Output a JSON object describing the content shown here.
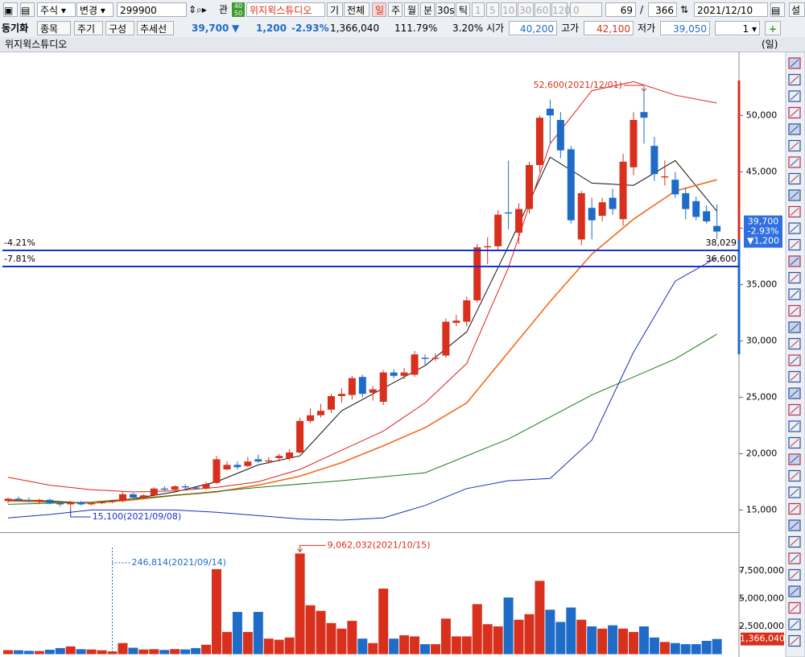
{
  "toolbar": {
    "market": "주식",
    "change": "변경",
    "code": "299900",
    "gwan": "관",
    "badge": [
      "40",
      "50"
    ],
    "name": "위지윅스튜디오",
    "gi": "기",
    "all": "전체",
    "periods": [
      "일",
      "주",
      "월",
      "분",
      "30s",
      "틱"
    ],
    "intervals": [
      "1",
      "5",
      "10",
      "30",
      "60",
      "120"
    ],
    "zero": "0",
    "count": "69",
    "slash": "/",
    "total": "366",
    "date": "2021/12/10",
    "settings": "설"
  },
  "infobar": {
    "buttons": [
      "동기화",
      "종목",
      "주기",
      "구성",
      "추세선"
    ],
    "price": "39,700",
    "arrow": "▼",
    "change": "1,200",
    "rate": "-2.93%",
    "volume": "1,366,040",
    "ratio": "111.79%",
    "turnover": "3.20%",
    "open_label": "시가",
    "open": "40,200",
    "high_label": "고가",
    "high": "42,100",
    "low_label": "저가",
    "low": "39,050",
    "spin": "1"
  },
  "panel": {
    "title": "위지윅스튜디오",
    "period": "(일)"
  },
  "chart_data": [
    {
      "type": "candlestick",
      "up_color": "#d8301c",
      "down_color": "#1f6cc8",
      "open": [
        15800,
        16000,
        15900,
        15800,
        15900,
        15600,
        15500,
        15700,
        15500,
        15600,
        15700,
        15800,
        16400,
        16100,
        16300,
        16900,
        16800,
        17100,
        17000,
        16900,
        17400,
        18600,
        19000,
        18900,
        19500,
        19300,
        19600,
        19600,
        20100,
        22900,
        23400,
        23900,
        25100,
        25200,
        26800,
        25400,
        24600,
        27200,
        26900,
        27000,
        28500,
        28400,
        28700,
        31600,
        31700,
        33600,
        38300,
        38400,
        41400,
        39600,
        41700,
        45600,
        50600,
        49600,
        47000,
        39000,
        41800,
        41100,
        42700,
        40800,
        45400,
        50300,
        47300,
        44500,
        44300,
        43100,
        42400,
        41500,
        40200
      ],
      "high": [
        16100,
        16200,
        16100,
        16000,
        16000,
        15800,
        15800,
        15800,
        15700,
        15800,
        15900,
        16600,
        16500,
        16400,
        17000,
        17100,
        17200,
        17300,
        17100,
        17500,
        19800,
        19300,
        19300,
        19700,
        19900,
        19700,
        20000,
        20400,
        23200,
        24000,
        24400,
        25300,
        25800,
        26900,
        27000,
        26000,
        27400,
        27500,
        27600,
        29100,
        28800,
        28900,
        32000,
        32300,
        33900,
        38600,
        39200,
        41600,
        46000,
        42200,
        45900,
        50000,
        51400,
        50300,
        47300,
        43300,
        42700,
        42700,
        43500,
        46600,
        50300,
        52600,
        48100,
        46000,
        45000,
        43600,
        42800,
        42000,
        42100
      ],
      "low": [
        15600,
        15800,
        15700,
        15600,
        15500,
        15300,
        15100,
        15400,
        15400,
        15500,
        15600,
        15700,
        16000,
        16000,
        16200,
        16700,
        16700,
        16900,
        16800,
        16800,
        17300,
        18500,
        18600,
        18800,
        19200,
        19100,
        19300,
        19400,
        20000,
        22700,
        23200,
        23600,
        24500,
        24800,
        25000,
        24700,
        24300,
        26700,
        26600,
        26800,
        27900,
        28200,
        28500,
        31300,
        31300,
        33400,
        36800,
        38000,
        39900,
        38600,
        41300,
        45000,
        47500,
        46200,
        40400,
        38500,
        39000,
        40600,
        41200,
        40200,
        44700,
        47500,
        44200,
        43800,
        42700,
        40800,
        40700,
        40400,
        39050
      ],
      "close": [
        16000,
        15900,
        15800,
        15900,
        15600,
        15500,
        15700,
        15500,
        15600,
        15700,
        15800,
        16400,
        16100,
        16300,
        16900,
        16800,
        17100,
        17000,
        16900,
        17300,
        19500,
        19000,
        18800,
        19300,
        19300,
        19400,
        19800,
        20100,
        22900,
        23400,
        23800,
        25100,
        25300,
        26700,
        25300,
        25700,
        27200,
        26900,
        27200,
        28800,
        28400,
        28500,
        31700,
        31800,
        33600,
        38300,
        38400,
        41200,
        41300,
        41700,
        45600,
        49800,
        50000,
        46900,
        40700,
        43100,
        40700,
        42300,
        41700,
        45900,
        49600,
        49800,
        44800,
        44600,
        43000,
        41700,
        41000,
        40600,
        39700
      ],
      "ylim": [
        13100,
        55600
      ],
      "yticks": [
        {
          "value": 15000,
          "label": "15,000"
        },
        {
          "value": 20000,
          "label": "20,000"
        },
        {
          "value": 25000,
          "label": "25,000"
        },
        {
          "value": 30000,
          "label": "30,000"
        },
        {
          "value": 35000,
          "label": "35,000"
        },
        {
          "value": 40000,
          "label": "40,000"
        },
        {
          "value": 45000,
          "label": "45,000"
        },
        {
          "value": 50000,
          "label": "50,000"
        }
      ],
      "lines": [
        {
          "color": "#111111",
          "x": [
            0,
            4,
            8,
            12,
            16,
            20,
            24,
            28,
            32,
            36,
            40,
            44,
            48,
            52,
            56,
            60,
            64,
            68
          ],
          "values": [
            15900,
            15800,
            15600,
            16000,
            16600,
            17500,
            19000,
            19800,
            23800,
            25800,
            27800,
            30800,
            38400,
            46300,
            44000,
            43800,
            46000,
            41500
          ]
        },
        {
          "color": "#f26a1b",
          "x": [
            0,
            4,
            8,
            12,
            16,
            20,
            24,
            28,
            32,
            36,
            40,
            44,
            48,
            52,
            56,
            60,
            64,
            68
          ],
          "values": [
            15800,
            15700,
            15600,
            15900,
            16300,
            16600,
            17200,
            18000,
            19200,
            20700,
            22300,
            24500,
            29000,
            33500,
            37700,
            40800,
            43300,
            44300
          ]
        },
        {
          "color": "#1a7a1a",
          "x": [
            0,
            8,
            16,
            24,
            32,
            40,
            48,
            56,
            64,
            68
          ],
          "values": [
            15500,
            15700,
            16300,
            17000,
            17600,
            18300,
            21300,
            25200,
            28400,
            30600
          ]
        },
        {
          "color": "#e0201a",
          "x": [
            0,
            4,
            8,
            12,
            16,
            20,
            24,
            28,
            32,
            36,
            40,
            44,
            48,
            52,
            56,
            60,
            64,
            68
          ],
          "values": [
            17900,
            17200,
            16800,
            16600,
            16700,
            17000,
            17500,
            18600,
            20300,
            22000,
            24500,
            28000,
            36500,
            47500,
            52200,
            53000,
            51800,
            51100
          ]
        },
        {
          "color": "#1a2fb8",
          "x": [
            0,
            4,
            8,
            12,
            16,
            20,
            24,
            28,
            32,
            36,
            40,
            44,
            48,
            52,
            56,
            60,
            64,
            68
          ],
          "values": [
            14300,
            14600,
            15000,
            15000,
            15000,
            14800,
            14500,
            14200,
            14100,
            14300,
            15400,
            16900,
            17600,
            17800,
            21200,
            29000,
            35300,
            37400
          ]
        }
      ],
      "hlines": [
        {
          "value": 38029,
          "label": "38,029",
          "pct": "-4.21%"
        },
        {
          "value": 36600,
          "label": "36,600",
          "pct": "-7.81%"
        }
      ],
      "high_label": "52,600(2021/12/01)",
      "low_label": "15,100(2021/09/08)",
      "current": {
        "price": "39,700",
        "rate": "-2.93%",
        "change": "▼1,200"
      }
    },
    {
      "type": "bar",
      "values": [
        360000,
        350000,
        300000,
        280000,
        400000,
        550000,
        700000,
        450000,
        420000,
        350000,
        246814,
        1000000,
        580000,
        420000,
        450000,
        380000,
        460000,
        430000,
        550000,
        850000,
        7650000,
        2000000,
        3800000,
        2000000,
        3800000,
        1400000,
        1300000,
        1500000,
        9062032,
        4400000,
        3900000,
        2800000,
        2300000,
        3000000,
        1400000,
        1000000,
        5900000,
        1400000,
        1700000,
        1600000,
        900000,
        900000,
        3200000,
        1600000,
        1600000,
        4500000,
        2700000,
        2500000,
        5100000,
        3100000,
        3600000,
        6600000,
        4000000,
        2900000,
        4200000,
        3100000,
        2500000,
        2300000,
        2600000,
        2300000,
        2000000,
        2500000,
        1500000,
        1100000,
        1000000,
        900000,
        900000,
        1200000,
        1366040
      ],
      "ylim": [
        0,
        10830000
      ],
      "yticks": [
        {
          "value": 2500000,
          "label": "2,500,000"
        },
        {
          "value": 5000000,
          "label": "5,000,000"
        },
        {
          "value": 7500000,
          "label": "7,500,000"
        }
      ],
      "max_label": "9,062,032(2021/10/15)",
      "min_label": "246,814(2021/09/14)",
      "current_label": "1,366,040"
    }
  ]
}
